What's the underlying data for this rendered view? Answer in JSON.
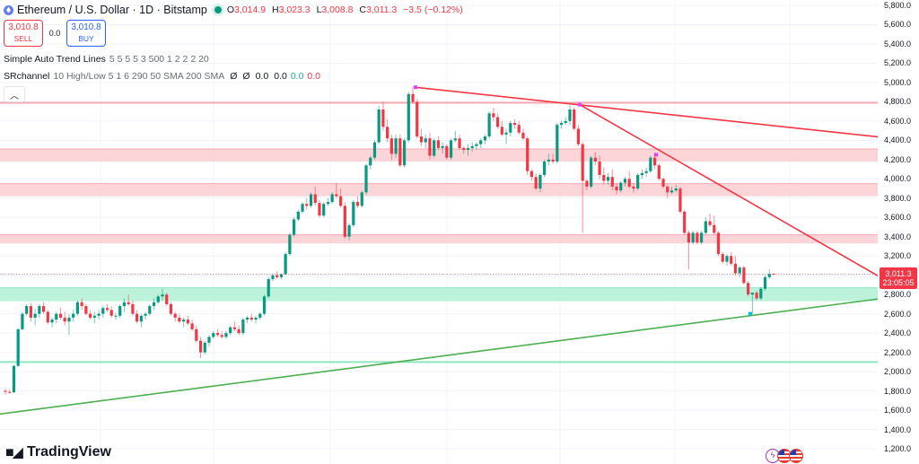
{
  "header": {
    "symbol_title": "Ethereum / U.S. Dollar · 1D · Bitstamp",
    "ohlc": {
      "open_label": "O",
      "open": "3,014.9",
      "high_label": "H",
      "high": "3,023.3",
      "low_label": "L",
      "low": "3,008.8",
      "close_label": "C",
      "close": "3,011.3",
      "change": "−3.5 (−0.12%)"
    }
  },
  "trade": {
    "sell_price": "3,010.8",
    "sell_label": "SELL",
    "spread": "0.0",
    "buy_price": "3,010.8",
    "buy_label": "BUY"
  },
  "indicators": [
    {
      "name": "Simple Auto Trend Lines",
      "params": "5 5 5 5 3 500 1 2 2 2 20",
      "values": []
    },
    {
      "name": "SRchannel",
      "params": "10 High/Low 5 1 6 290 50 SMA 200 SMA",
      "values": [
        "Ø",
        "Ø",
        "0.0",
        "0.0"
      ],
      "green_value": "0.0",
      "red_value": "0.0"
    }
  ],
  "collapse_icon": "chevron-up-icon",
  "price_axis": {
    "ticks": [
      "5,800.0",
      "5,600.0",
      "5,400.0",
      "5,200.0",
      "5,000.0",
      "4,800.0",
      "4,600.0",
      "4,400.0",
      "4,200.0",
      "4,000.0",
      "3,800.0",
      "3,600.0",
      "3,400.0",
      "3,200.0",
      "2,800.0",
      "2,600.0",
      "2,400.0",
      "2,200.0",
      "2,000.0",
      "1,800.0",
      "1,600.0",
      "1,400.0",
      "1,200.0"
    ],
    "current_price": "3,011.3",
    "countdown": "23:05:05"
  },
  "branding": {
    "logo_text": "TradingView",
    "logo_mark": "TV"
  },
  "colors": {
    "up": "#089981",
    "down": "#f23645",
    "resistance_band": "#fbd0d4",
    "support_band": "#b6f2d6",
    "trend_down": "#f23645",
    "trend_up": "#4caf50",
    "pivot": "#e040fb"
  },
  "chart_data": {
    "type": "candlestick",
    "title": "Ethereum / U.S. Dollar · 1D · Bitstamp",
    "ylabel": "USD",
    "ylim": [
      1200,
      5800
    ],
    "y_ticks": [
      1200,
      1400,
      1600,
      1800,
      2000,
      2200,
      2400,
      2600,
      2800,
      3000,
      3200,
      3400,
      3600,
      3800,
      4000,
      4200,
      4400,
      4600,
      4800,
      5000,
      5200,
      5400,
      5600,
      5800
    ],
    "last": {
      "open": 3014.9,
      "high": 3023.3,
      "low": 3008.8,
      "close": 3011.3,
      "change": -3.5,
      "change_pct": -0.12
    },
    "resistance_zones": [
      [
        4180,
        4310
      ],
      [
        3820,
        3950
      ],
      [
        3330,
        3420
      ]
    ],
    "support_zones": [
      [
        2730,
        2870
      ]
    ],
    "horizontal_lines": [
      {
        "price": 4790,
        "color": "red"
      },
      {
        "price": 2100,
        "color": "green"
      }
    ],
    "trend_lines": [
      {
        "name": "descending-resistance-1",
        "from": [
          463,
          4950
        ],
        "to": [
          1024,
          4390
        ]
      },
      {
        "name": "descending-resistance-2",
        "from": [
          646,
          4770
        ],
        "to": [
          1024,
          2750
        ]
      },
      {
        "name": "ascending-support",
        "from": [
          0,
          1560
        ],
        "to": [
          1024,
          2810
        ]
      }
    ],
    "pivots": [
      [
        463,
        4950
      ],
      [
        646,
        4770
      ],
      [
        731,
        4250
      ],
      [
        836,
        2600
      ]
    ],
    "candles": [
      [
        1800,
        1830,
        1760,
        1790
      ],
      [
        1790,
        1810,
        1770,
        1785
      ],
      [
        1785,
        2070,
        1780,
        2060
      ],
      [
        2060,
        2450,
        2050,
        2440
      ],
      [
        2440,
        2620,
        2430,
        2600
      ],
      [
        2600,
        2700,
        2580,
        2680
      ],
      [
        2680,
        2710,
        2520,
        2560
      ],
      [
        2560,
        2650,
        2480,
        2600
      ],
      [
        2600,
        2700,
        2560,
        2680
      ],
      [
        2680,
        2720,
        2600,
        2620
      ],
      [
        2620,
        2640,
        2490,
        2510
      ],
      [
        2510,
        2560,
        2460,
        2540
      ],
      [
        2540,
        2620,
        2500,
        2600
      ],
      [
        2600,
        2660,
        2540,
        2560
      ],
      [
        2560,
        2620,
        2480,
        2520
      ],
      [
        2520,
        2600,
        2380,
        2560
      ],
      [
        2560,
        2640,
        2520,
        2600
      ],
      [
        2600,
        2740,
        2580,
        2720
      ],
      [
        2720,
        2760,
        2640,
        2680
      ],
      [
        2680,
        2700,
        2580,
        2600
      ],
      [
        2600,
        2640,
        2540,
        2560
      ],
      [
        2560,
        2620,
        2500,
        2580
      ],
      [
        2580,
        2640,
        2540,
        2600
      ],
      [
        2600,
        2680,
        2560,
        2660
      ],
      [
        2660,
        2700,
        2620,
        2640
      ],
      [
        2640,
        2680,
        2560,
        2580
      ],
      [
        2580,
        2610,
        2540,
        2580
      ],
      [
        2580,
        2700,
        2560,
        2680
      ],
      [
        2680,
        2760,
        2620,
        2720
      ],
      [
        2720,
        2800,
        2680,
        2700
      ],
      [
        2700,
        2740,
        2580,
        2600
      ],
      [
        2600,
        2640,
        2500,
        2520
      ],
      [
        2520,
        2600,
        2460,
        2580
      ],
      [
        2580,
        2620,
        2540,
        2600
      ],
      [
        2600,
        2700,
        2580,
        2680
      ],
      [
        2680,
        2760,
        2640,
        2720
      ],
      [
        2720,
        2800,
        2700,
        2780
      ],
      [
        2780,
        2860,
        2740,
        2800
      ],
      [
        2800,
        2820,
        2680,
        2700
      ],
      [
        2700,
        2720,
        2580,
        2600
      ],
      [
        2600,
        2620,
        2520,
        2560
      ],
      [
        2560,
        2600,
        2500,
        2520
      ],
      [
        2520,
        2560,
        2460,
        2540
      ],
      [
        2540,
        2580,
        2480,
        2500
      ],
      [
        2500,
        2540,
        2420,
        2440
      ],
      [
        2440,
        2480,
        2300,
        2320
      ],
      [
        2320,
        2360,
        2140,
        2200
      ],
      [
        2200,
        2320,
        2180,
        2300
      ],
      [
        2300,
        2380,
        2260,
        2360
      ],
      [
        2360,
        2420,
        2340,
        2400
      ],
      [
        2400,
        2440,
        2360,
        2380
      ],
      [
        2380,
        2420,
        2340,
        2360
      ],
      [
        2360,
        2420,
        2340,
        2400
      ],
      [
        2400,
        2480,
        2380,
        2460
      ],
      [
        2460,
        2520,
        2420,
        2440
      ],
      [
        2440,
        2480,
        2380,
        2400
      ],
      [
        2400,
        2560,
        2380,
        2540
      ],
      [
        2540,
        2580,
        2500,
        2560
      ],
      [
        2560,
        2600,
        2520,
        2540
      ],
      [
        2540,
        2580,
        2500,
        2560
      ],
      [
        2560,
        2620,
        2540,
        2600
      ],
      [
        2600,
        2800,
        2580,
        2780
      ],
      [
        2780,
        2980,
        2760,
        2960
      ],
      [
        2960,
        3020,
        2940,
        3000
      ],
      [
        3000,
        3040,
        2960,
        2980
      ],
      [
        2980,
        3020,
        2960,
        3010
      ],
      [
        3010,
        3240,
        3000,
        3220
      ],
      [
        3220,
        3440,
        3200,
        3420
      ],
      [
        3420,
        3600,
        3400,
        3580
      ],
      [
        3580,
        3680,
        3560,
        3660
      ],
      [
        3660,
        3760,
        3640,
        3740
      ],
      [
        3740,
        3800,
        3680,
        3720
      ],
      [
        3720,
        3860,
        3700,
        3840
      ],
      [
        3840,
        3920,
        3720,
        3750
      ],
      [
        3750,
        3780,
        3600,
        3620
      ],
      [
        3620,
        3760,
        3600,
        3740
      ],
      [
        3740,
        3800,
        3720,
        3760
      ],
      [
        3760,
        3860,
        3740,
        3840
      ],
      [
        3840,
        3960,
        3800,
        3820
      ],
      [
        3820,
        3900,
        3700,
        3720
      ],
      [
        3720,
        3760,
        3380,
        3400
      ],
      [
        3400,
        3540,
        3360,
        3520
      ],
      [
        3520,
        3780,
        3500,
        3760
      ],
      [
        3760,
        3820,
        3700,
        3720
      ],
      [
        3720,
        3880,
        3700,
        3860
      ],
      [
        3860,
        4160,
        3840,
        4140
      ],
      [
        4140,
        4240,
        4100,
        4220
      ],
      [
        4220,
        4400,
        4200,
        4380
      ],
      [
        4380,
        4760,
        4360,
        4720
      ],
      [
        4720,
        4800,
        4500,
        4540
      ],
      [
        4540,
        4620,
        4380,
        4420
      ],
      [
        4420,
        4460,
        4200,
        4260
      ],
      [
        4260,
        4460,
        4220,
        4420
      ],
      [
        4420,
        4460,
        4120,
        4140
      ],
      [
        4140,
        4420,
        4120,
        4400
      ],
      [
        4400,
        4900,
        4380,
        4880
      ],
      [
        4880,
        4960,
        4780,
        4800
      ],
      [
        4800,
        4830,
        4420,
        4440
      ],
      [
        4440,
        4520,
        4340,
        4380
      ],
      [
        4380,
        4460,
        4320,
        4420
      ],
      [
        4420,
        4480,
        4200,
        4240
      ],
      [
        4240,
        4420,
        4220,
        4400
      ],
      [
        4400,
        4440,
        4300,
        4320
      ],
      [
        4320,
        4380,
        4260,
        4340
      ],
      [
        4340,
        4360,
        4200,
        4220
      ],
      [
        4220,
        4420,
        4200,
        4400
      ],
      [
        4400,
        4500,
        4380,
        4420
      ],
      [
        4420,
        4460,
        4300,
        4320
      ],
      [
        4320,
        4340,
        4260,
        4300
      ],
      [
        4300,
        4360,
        4240,
        4320
      ],
      [
        4320,
        4380,
        4280,
        4340
      ],
      [
        4340,
        4380,
        4300,
        4360
      ],
      [
        4360,
        4420,
        4320,
        4400
      ],
      [
        4400,
        4460,
        4360,
        4440
      ],
      [
        4440,
        4700,
        4420,
        4680
      ],
      [
        4680,
        4740,
        4600,
        4640
      ],
      [
        4640,
        4680,
        4520,
        4540
      ],
      [
        4540,
        4600,
        4440,
        4460
      ],
      [
        4460,
        4520,
        4360,
        4480
      ],
      [
        4480,
        4600,
        4440,
        4580
      ],
      [
        4580,
        4620,
        4520,
        4560
      ],
      [
        4560,
        4600,
        4460,
        4480
      ],
      [
        4480,
        4520,
        4400,
        4420
      ],
      [
        4420,
        4440,
        4040,
        4080
      ],
      [
        4080,
        4100,
        3980,
        4020
      ],
      [
        4020,
        4060,
        3880,
        3900
      ],
      [
        3900,
        4060,
        3860,
        4040
      ],
      [
        4040,
        4200,
        4020,
        4180
      ],
      [
        4180,
        4260,
        4140,
        4200
      ],
      [
        4200,
        4260,
        4160,
        4180
      ],
      [
        4180,
        4580,
        4160,
        4560
      ],
      [
        4560,
        4600,
        4520,
        4580
      ],
      [
        4580,
        4640,
        4560,
        4600
      ],
      [
        4600,
        4760,
        4560,
        4720
      ],
      [
        4720,
        4740,
        4500,
        4520
      ],
      [
        4520,
        4560,
        4340,
        4360
      ],
      [
        4360,
        4380,
        3440,
        3980
      ],
      [
        3980,
        4000,
        3880,
        3920
      ],
      [
        3920,
        4240,
        3900,
        4220
      ],
      [
        4220,
        4280,
        4140,
        4180
      ],
      [
        4180,
        4240,
        4000,
        4040
      ],
      [
        4040,
        4120,
        3940,
        3980
      ],
      [
        3980,
        4060,
        3940,
        4020
      ],
      [
        4020,
        4100,
        3880,
        3920
      ],
      [
        3920,
        3960,
        3840,
        3880
      ],
      [
        3880,
        3980,
        3860,
        3960
      ],
      [
        3960,
        4020,
        3920,
        4000
      ],
      [
        4000,
        4080,
        3900,
        3920
      ],
      [
        3920,
        3960,
        3860,
        3900
      ],
      [
        3900,
        4060,
        3880,
        4040
      ],
      [
        4040,
        4100,
        4000,
        4060
      ],
      [
        4060,
        4120,
        4020,
        4080
      ],
      [
        4080,
        4240,
        4060,
        4220
      ],
      [
        4220,
        4250,
        4100,
        4140
      ],
      [
        4140,
        4160,
        3980,
        4000
      ],
      [
        4000,
        4020,
        3900,
        3920
      ],
      [
        3920,
        3940,
        3800,
        3860
      ],
      [
        3860,
        3920,
        3840,
        3880
      ],
      [
        3880,
        3940,
        3860,
        3900
      ],
      [
        3900,
        3920,
        3640,
        3660
      ],
      [
        3660,
        3680,
        3420,
        3440
      ],
      [
        3440,
        3460,
        3060,
        3340
      ],
      [
        3340,
        3460,
        3320,
        3440
      ],
      [
        3440,
        3460,
        3320,
        3340
      ],
      [
        3340,
        3460,
        3320,
        3440
      ],
      [
        3440,
        3600,
        3420,
        3560
      ],
      [
        3560,
        3640,
        3500,
        3520
      ],
      [
        3520,
        3620,
        3420,
        3440
      ],
      [
        3440,
        3460,
        3200,
        3220
      ],
      [
        3220,
        3240,
        3120,
        3140
      ],
      [
        3140,
        3220,
        3100,
        3200
      ],
      [
        3200,
        3240,
        3100,
        3120
      ],
      [
        3120,
        3200,
        3000,
        3020
      ],
      [
        3020,
        3100,
        2980,
        3080
      ],
      [
        3080,
        3100,
        2900,
        2920
      ],
      [
        2920,
        2940,
        2780,
        2800
      ],
      [
        2800,
        2820,
        2600,
        2820
      ],
      [
        2820,
        2840,
        2740,
        2760
      ],
      [
        2760,
        2880,
        2740,
        2860
      ],
      [
        2860,
        3000,
        2840,
        2980
      ],
      [
        2980,
        3060,
        2960,
        3015
      ],
      [
        3014.9,
        3023.3,
        3008.8,
        3011.3
      ]
    ]
  }
}
